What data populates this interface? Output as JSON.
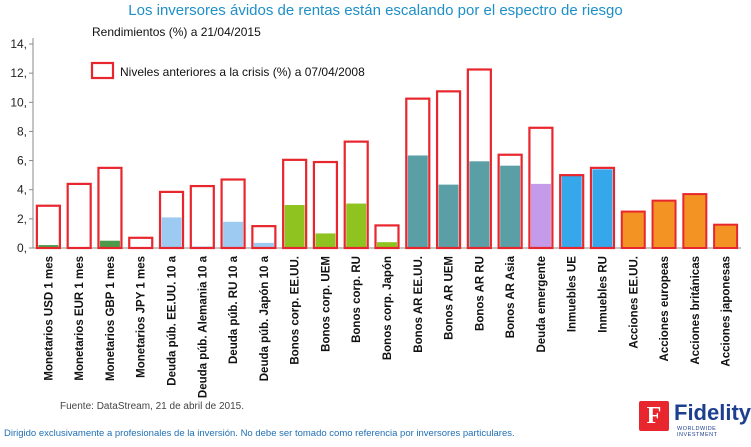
{
  "chart_data": {
    "type": "bar",
    "title": "Los inversores ávidos de rentas están escalando por el espectro de riesgo",
    "ylim": [
      0,
      14
    ],
    "yticks": [
      0,
      2,
      4,
      6,
      8,
      10,
      12,
      14
    ],
    "ytick_labels": [
      "0,",
      "2,",
      "4,",
      "6,",
      "8,",
      "10,",
      "12,",
      "14,"
    ],
    "legend": {
      "current_label": "Rendimientos (%) a 21/04/2015",
      "precrisis_label": "Niveles anteriores a la crisis (%) a 07/04/2008",
      "placement": "top-left"
    },
    "categories": [
      "Monetarios USD 1 mes",
      "Monetarios EUR 1 mes",
      "Monetarios GBP 1 mes",
      "Monetarios JPY 1 mes",
      "Deuda púb. EE.UU. 10 a",
      "Deuda púb. Alemania 10 a",
      "Deuda púb. RU 10 a",
      "Deuda púb. Japón 10 a",
      "Bonos corp. EE.UU.",
      "Bonos corp. UEM",
      "Bonos corp. RU",
      "Bonos corp. Japón",
      "Bonos AR EE.UU.",
      "Bonos AR UEM",
      "Bonos AR RU",
      "Bonos AR Asia",
      "Deuda emergente",
      "Inmuebles UE",
      "Inmuebles RU",
      "Acciones EE.UU.",
      "Acciones europeas",
      "Acciones británicas",
      "Acciones japonesas"
    ],
    "series": [
      {
        "name": "Rendimientos (%) a 21/04/2015",
        "values": [
          0.2,
          0.0,
          0.5,
          0.0,
          2.1,
          0.1,
          1.8,
          0.35,
          2.95,
          1.0,
          3.05,
          0.4,
          6.35,
          4.35,
          5.95,
          5.65,
          4.4,
          4.95,
          5.4,
          2.5,
          3.25,
          3.7,
          1.6
        ]
      },
      {
        "name": "Niveles anteriores a la crisis (%) a 07/04/2008",
        "values": [
          2.9,
          4.4,
          5.5,
          0.7,
          3.85,
          4.25,
          4.7,
          1.5,
          6.05,
          5.9,
          7.3,
          1.55,
          10.25,
          10.75,
          12.25,
          6.4,
          8.25,
          5.0,
          5.5,
          null,
          null,
          null,
          null
        ]
      }
    ],
    "group_colors": [
      "#4e9a48",
      "#4e9a48",
      "#4e9a48",
      "#4e9a48",
      "#9ccaf1",
      "#9ccaf1",
      "#9ccaf1",
      "#9ccaf1",
      "#8fc31f",
      "#8fc31f",
      "#8fc31f",
      "#8fc31f",
      "#5a9fa5",
      "#5a9fa5",
      "#5a9fa5",
      "#5a9fa5",
      "#c39be9",
      "#36a7eb",
      "#36a7eb",
      "#f39323",
      "#f39323",
      "#f39323",
      "#f39323"
    ],
    "outline_color": "#e8262d"
  },
  "footer": {
    "source": "Fuente: DataStream, 21 de abril de 2015.",
    "disclaimer": "Dirigido exclusivamente a profesionales de la inversión. No debe ser tomado como referencia por inversores particulares."
  },
  "logo": {
    "word": "Fidelity",
    "sub": "WORLDWIDE INVESTMENT",
    "mark": "F"
  }
}
